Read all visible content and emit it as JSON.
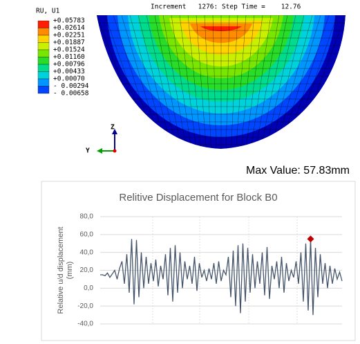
{
  "contour": {
    "header": "Increment   1276: Step Time =    12.76",
    "legend_title": "RU, U1",
    "legend_labels": [
      "+0.05783",
      "+0.02614",
      "+0.02251",
      "+0.01887",
      "+0.01524",
      "+0.01160",
      "+0.00796",
      "+0.00433",
      "+0.00070",
      "- 0.00294",
      "- 0.00658"
    ],
    "legend_colors": [
      "#ff1e00",
      "#ff8c00",
      "#ffd200",
      "#c8f000",
      "#78e600",
      "#28dc28",
      "#00dc8c",
      "#00d2dc",
      "#0096ff",
      "#0046ff"
    ],
    "triad": {
      "z": "Z",
      "y": "Y"
    }
  },
  "max_value": "Max Value: 57.83mm",
  "chart_data": {
    "type": "line",
    "title": "Relitive Displacement for Block B0",
    "ylabel_lines": [
      "Relative u/d displacement",
      "(mm)"
    ],
    "ylim": [
      -40,
      80
    ],
    "yticks": [
      {
        "value": -40,
        "label": "-40,0"
      },
      {
        "value": -20,
        "label": "-20,0"
      },
      {
        "value": 0,
        "label": "0,0"
      },
      {
        "value": 20,
        "label": "20,0"
      },
      {
        "value": 40,
        "label": "40,0"
      },
      {
        "value": 60,
        "label": "60,0"
      },
      {
        "value": 80,
        "label": "80,0"
      }
    ],
    "grid": true,
    "series": [
      {
        "color": "#44546a",
        "values": [
          15,
          15,
          14,
          17,
          12,
          16,
          20,
          10,
          22,
          30,
          5,
          38,
          -5,
          55,
          -18,
          54,
          -10,
          40,
          0,
          35,
          5,
          28,
          8,
          32,
          2,
          25,
          10,
          38,
          -8,
          45,
          -15,
          48,
          -5,
          40,
          0,
          30,
          10,
          25,
          5,
          35,
          -3,
          28,
          12,
          20,
          8,
          22,
          10,
          28,
          5,
          30,
          8,
          20,
          15,
          35,
          -10,
          42,
          -20,
          48,
          -28,
          50,
          -15,
          45,
          -5,
          38,
          0,
          30,
          5,
          40,
          -8,
          46,
          -12,
          25,
          10,
          30,
          0,
          35,
          -5,
          28,
          8,
          20,
          12,
          30,
          5,
          40,
          -15,
          50,
          -25,
          55,
          -30,
          45,
          -10,
          38,
          5,
          28,
          0,
          25,
          5,
          22,
          10,
          18,
          8
        ]
      }
    ],
    "marker": {
      "index": 87,
      "color": "#c00000"
    }
  }
}
